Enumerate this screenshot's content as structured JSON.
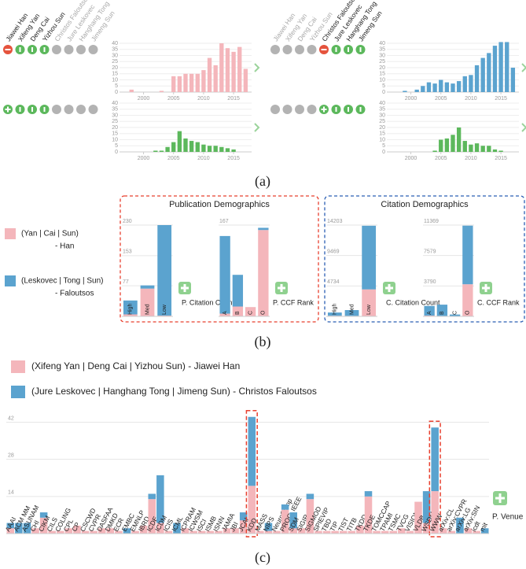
{
  "panel_a": {
    "caption": "(a)",
    "groups": [
      {
        "names": [
          "Jiawei Han",
          "Xifeng Yan",
          "Deng Cai",
          "Yizhou Sun",
          "Christos Faloutsos",
          "Jure Leskovec",
          "Hanghang Tong",
          "Jimeng Sun"
        ],
        "active": [
          true,
          true,
          true,
          true,
          false,
          false,
          false,
          false
        ],
        "icons_top": [
          "remove",
          "keep",
          "keep",
          "keep",
          "off",
          "off",
          "off",
          "off"
        ],
        "icons_bottom": [
          "add",
          "keep",
          "keep",
          "keep",
          "off",
          "off",
          "off",
          "off"
        ],
        "charts": [
          {
            "type": "bar",
            "color": "#f4b6bb",
            "x": [
              1998,
              2003,
              2005,
              2006,
              2007,
              2008,
              2009,
              2010,
              2011,
              2012,
              2013,
              2014,
              2015,
              2016,
              2017
            ],
            "values": [
              2,
              1,
              13,
              13,
              15,
              15,
              15,
              18,
              28,
              22,
              40,
              36,
              33,
              37,
              19
            ],
            "xlim": [
              1996,
              2018
            ],
            "xticks": [
              2000,
              2005,
              2010,
              2015
            ],
            "ylim": [
              0,
              40
            ],
            "yticks": [
              0,
              5,
              10,
              15,
              20,
              25,
              30,
              35,
              40
            ]
          },
          {
            "type": "bar",
            "color": "#5cb85c",
            "x": [
              2002,
              2003,
              2004,
              2005,
              2006,
              2007,
              2008,
              2009,
              2010,
              2011,
              2012,
              2013,
              2014,
              2015
            ],
            "values": [
              1,
              1,
              4,
              8,
              17,
              11,
              9,
              8,
              6,
              5,
              5,
              4,
              3,
              2
            ],
            "xlim": [
              1996,
              2018
            ],
            "xticks": [
              2000,
              2005,
              2010,
              2015
            ],
            "ylim": [
              0,
              40
            ],
            "yticks": [
              0,
              5,
              10,
              15,
              20,
              25,
              30,
              35,
              40
            ]
          }
        ]
      },
      {
        "names": [
          "Jiawei Han",
          "Xifeng Yan",
          "Deng Cai",
          "Yizhou Sun",
          "Christos Faloutsos",
          "Jure Leskovec",
          "Hanghang Tong",
          "Jimeng Sun"
        ],
        "active": [
          false,
          false,
          false,
          false,
          true,
          true,
          true,
          true
        ],
        "icons_top": [
          "off",
          "off",
          "off",
          "off",
          "remove",
          "keep",
          "keep",
          "keep"
        ],
        "icons_bottom": [
          "off",
          "off",
          "off",
          "off",
          "add",
          "keep",
          "keep",
          "keep"
        ],
        "charts": [
          {
            "type": "bar",
            "color": "#5ba3cf",
            "x": [
              1999,
              2001,
              2002,
              2003,
              2004,
              2005,
              2006,
              2007,
              2008,
              2009,
              2010,
              2011,
              2012,
              2013,
              2014,
              2015,
              2016,
              2017
            ],
            "values": [
              1,
              2,
              5,
              8,
              7,
              10,
              8,
              7,
              9,
              13,
              14,
              22,
              28,
              32,
              38,
              41,
              41,
              20
            ],
            "xlim": [
              1996,
              2018
            ],
            "xticks": [
              2000,
              2005,
              2010,
              2015
            ],
            "ylim": [
              0,
              40
            ],
            "yticks": [
              0,
              5,
              10,
              15,
              20,
              25,
              30,
              35,
              40
            ]
          },
          {
            "type": "bar",
            "color": "#5cb85c",
            "x": [
              2004,
              2005,
              2006,
              2007,
              2008,
              2009,
              2010,
              2011,
              2012,
              2013,
              2014,
              2015
            ],
            "values": [
              1,
              10,
              11,
              14,
              20,
              9,
              6,
              7,
              5,
              5,
              2,
              1
            ],
            "xlim": [
              1996,
              2018
            ],
            "xticks": [
              2000,
              2005,
              2010,
              2015
            ],
            "ylim": [
              0,
              40
            ],
            "yticks": [
              0,
              5,
              10,
              15,
              20,
              25,
              30,
              35,
              40
            ]
          }
        ]
      }
    ]
  },
  "panel_b": {
    "caption": "(b)",
    "legend": [
      {
        "label": [
          "(Yan | Cai | Sun)",
          "- Han"
        ],
        "color": "#f4b6bb"
      },
      {
        "label": [
          "(Leskovec | Tong |  Sun)",
          "- Faloutsos"
        ],
        "color": "#5ba3cf"
      }
    ],
    "boxes": [
      {
        "title": "Publication Demographics",
        "color": "#e8402f",
        "charts": [
          {
            "type": "stacked_bar",
            "button": "P. Citation Count",
            "categories": [
              "High",
              "Med",
              "Low"
            ],
            "series": [
              {
                "color": "#f4b6bb",
                "values": [
                  5,
                  70,
                  2
                ]
              },
              {
                "color": "#5ba3cf",
                "values": [
                  35,
                  8,
                  228
                ]
              }
            ],
            "ylim": [
              0,
              230
            ],
            "yticks": [
              77,
              153,
              230
            ]
          },
          {
            "type": "stacked_bar",
            "button": "P. CCF Rank",
            "categories": [
              "A",
              "B",
              "C",
              "O"
            ],
            "series": [
              {
                "color": "#f4b6bb",
                "values": [
                  5,
                  18,
                  17,
                  158
                ]
              },
              {
                "color": "#5ba3cf",
                "values": [
                  142,
                  58,
                  0,
                  4
                ]
              }
            ],
            "ylim": [
              0,
              167
            ],
            "yticks": [
              167
            ]
          }
        ]
      },
      {
        "title": "Citation Demographics",
        "color": "#2b5fb4",
        "charts": [
          {
            "type": "stacked_bar",
            "button": "C. Citation Count",
            "categories": [
              "High",
              "Med",
              "Low"
            ],
            "series": [
              {
                "color": "#f4b6bb",
                "values": [
                  100,
                  80,
                  4200
                ]
              },
              {
                "color": "#5ba3cf",
                "values": [
                  500,
                  900,
                  9900
                ]
              }
            ],
            "ylim": [
              0,
              14203
            ],
            "yticks": [
              4734,
              9469,
              14203
            ]
          },
          {
            "type": "stacked_bar",
            "button": "C. CCF Rank",
            "categories": [
              "A",
              "B",
              "C",
              "O"
            ],
            "series": [
              {
                "color": "#f4b6bb",
                "values": [
                  100,
                  60,
                  30,
                  4000
                ]
              },
              {
                "color": "#5ba3cf",
                "values": [
                  1200,
                  1400,
                  200,
                  7300
                ]
              }
            ],
            "ylim": [
              0,
              11369
            ],
            "yticks": [
              3790,
              7579,
              11369
            ]
          }
        ]
      }
    ]
  },
  "panel_c": {
    "caption": "(c)",
    "legend": [
      {
        "label": "(Xifeng Yan | Deng Cai | Yizhou Sun) - Jiawei Han",
        "color": "#f4b6bb"
      },
      {
        "label": "(Jure Leskovec | Hanghang Tong | Jimeng Sun) - Christos Faloutsos",
        "color": "#5ba3cf"
      }
    ],
    "chart": {
      "type": "stacked_bar",
      "button": "P. Venue",
      "grid": true,
      "highlighted": [
        29,
        51
      ],
      "categories": [
        "AAAI",
        "ACM MM",
        "ASUNAM",
        "CHI",
        "CIKM",
        "CILS",
        "COLING",
        "CPL",
        "CP",
        "CSCWD",
        "CVPR",
        "DASFAA",
        "DMKD",
        "ECR",
        "EMBC",
        "EMNLP",
        "IBRD",
        "ICDE",
        "ICDM",
        "ICIS",
        "ICML",
        "ICPRAM",
        "ICWSM",
        "ISCI",
        "ISMB",
        "ISNN",
        "JAMIA",
        "JBI",
        "JCAI",
        "KDD",
        "MASS",
        "NIPS",
        "NeuroComp",
        "PROC. IEEE",
        "SDM",
        "SIGIR",
        "SIGMOD",
        "SPIEVIP",
        "TBD",
        "TIP",
        "TIST",
        "TITB",
        "TKDD",
        "TKDE",
        "TOMCCAP",
        "TPAMI",
        "TSMC",
        "TVCG",
        "VISION",
        "VLDB",
        "WSDM",
        "WWW",
        "arXiv:CL",
        "arXiv:CVPR",
        "arXiv:LG",
        "arXiv:SIN",
        "icdt",
        "mit"
      ],
      "series": [
        {
          "color": "#f4b6bb",
          "values": [
            2,
            0,
            0,
            2,
            6,
            1,
            1,
            2,
            3,
            1,
            1,
            2,
            2,
            1,
            0,
            1,
            3,
            13,
            4,
            1,
            0,
            2,
            1,
            1,
            1,
            1,
            2,
            2,
            5,
            18,
            1,
            1,
            1,
            9,
            2,
            2,
            13,
            1,
            1,
            1,
            1,
            1,
            3,
            14,
            1,
            1,
            1,
            2,
            1,
            12,
            4,
            16,
            2,
            1,
            0,
            2,
            1,
            0
          ]
        },
        {
          "color": "#5ba3cf",
          "values": [
            2,
            4,
            4,
            0,
            2,
            0,
            0,
            0,
            0,
            0,
            0,
            0,
            0,
            0,
            2,
            0,
            0,
            2,
            18,
            0,
            4,
            0,
            0,
            0,
            0,
            0,
            0,
            0,
            3,
            26,
            0,
            3,
            0,
            2,
            6,
            0,
            2,
            0,
            0,
            0,
            0,
            0,
            0,
            2,
            0,
            0,
            0,
            0,
            0,
            0,
            12,
            24,
            0,
            0,
            6,
            0,
            0,
            2
          ]
        }
      ],
      "ylim": [
        0,
        46
      ],
      "yticks": [
        14,
        28,
        42
      ]
    }
  }
}
